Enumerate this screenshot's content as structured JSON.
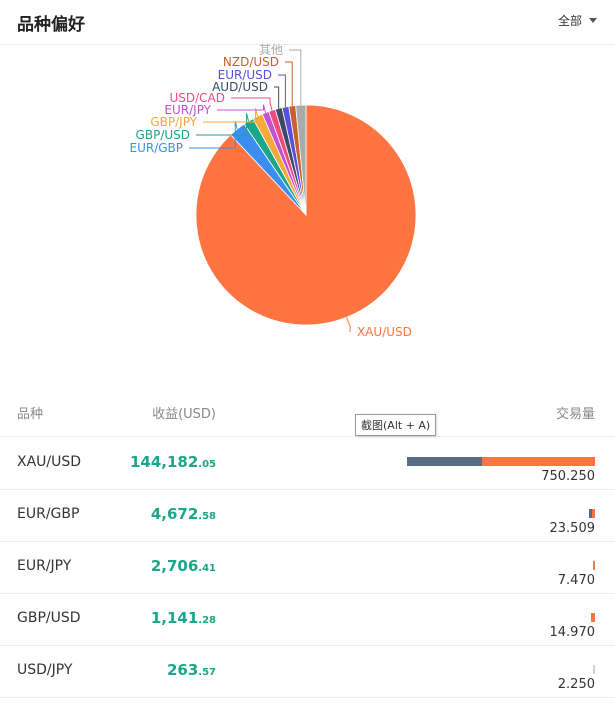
{
  "header": {
    "title": "品种偏好",
    "filter_label": "全部"
  },
  "tooltip": "截图(Alt + A)",
  "table": {
    "headers": {
      "symbol": "品种",
      "profit": "收益(USD)",
      "volume": "交易量"
    },
    "rows": [
      {
        "symbol": "XAU/USD",
        "profit_int": "144,182",
        "profit_dec": ".05",
        "volume": "750.250",
        "bar_total": 1.0,
        "bar_split": 0.4
      },
      {
        "symbol": "EUR/GBP",
        "profit_int": "4,672",
        "profit_dec": ".58",
        "volume": "23.509",
        "bar_total": 0.031,
        "bar_split": 0.5
      },
      {
        "symbol": "EUR/JPY",
        "profit_int": "2,706",
        "profit_dec": ".41",
        "volume": "7.470",
        "bar_total": 0.01,
        "bar_split": 0.0
      },
      {
        "symbol": "GBP/USD",
        "profit_int": "1,141",
        "profit_dec": ".28",
        "volume": "14.970",
        "bar_total": 0.02,
        "bar_split": 0.0
      },
      {
        "symbol": "USD/JPY",
        "profit_int": "263",
        "profit_dec": ".57",
        "volume": "2.250",
        "bar_total": 0.003,
        "bar_split": 0.0
      }
    ]
  },
  "chart_data": {
    "type": "pie",
    "slices": [
      {
        "label": "XAU/USD",
        "value": 88.0,
        "color": "#ff7440"
      },
      {
        "label": "EUR/GBP",
        "value": 2.5,
        "color": "#3a8ef0"
      },
      {
        "label": "GBP/USD",
        "value": 1.5,
        "color": "#1aa689"
      },
      {
        "label": "GBP/JPY",
        "value": 1.5,
        "color": "#f4a939"
      },
      {
        "label": "EUR/JPY",
        "value": 1.0,
        "color": "#c84fd0"
      },
      {
        "label": "USD/CAD",
        "value": 1.0,
        "color": "#f04b7e"
      },
      {
        "label": "AUD/USD",
        "value": 1.0,
        "color": "#3d4a67"
      },
      {
        "label": "EUR/USD",
        "value": 1.0,
        "color": "#5b4fe0"
      },
      {
        "label": "NZD/USD",
        "value": 1.0,
        "color": "#c4622d"
      },
      {
        "label": "其他",
        "value": 1.5,
        "color": "#aaaaaa"
      }
    ]
  }
}
